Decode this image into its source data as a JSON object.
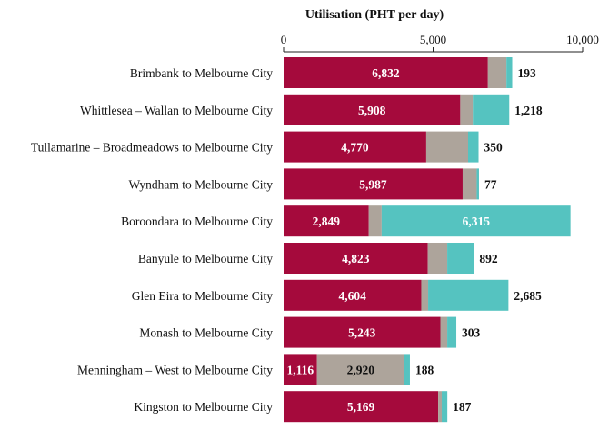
{
  "chart_data": {
    "type": "bar",
    "orientation": "horizontal",
    "stacked": true,
    "title": "Utilisation (PHT per day)",
    "xlim": [
      0,
      10000
    ],
    "ticks": [
      {
        "value": 0,
        "label": "0"
      },
      {
        "value": 5000,
        "label": "5,000"
      },
      {
        "value": 10000,
        "label": "10,000"
      }
    ],
    "grid": false,
    "legend": "none",
    "categories": [
      "Brimbank to Melbourne City",
      "Whittlesea – Wallan to Melbourne City",
      "Tullamarine – Broadmeadows to Melbourne City",
      "Wyndham to Melbourne City",
      "Boroondara to Melbourne City",
      "Banyule to Melbourne City",
      "Glen Eira to Melbourne City",
      "Monash to Melbourne City",
      "Menningham – West to Melbourne City",
      "Kingston to Melbourne City"
    ],
    "series": [
      {
        "color": "#a50a3c",
        "values": [
          6832,
          5908,
          4770,
          5987,
          2849,
          4823,
          4604,
          5243,
          1116,
          5169
        ],
        "labels": [
          "6,832",
          "5,908",
          "4,770",
          "5,987",
          "2,849",
          "4,823",
          "4,604",
          "5,243",
          "1,116",
          "5,169"
        ],
        "label_placement": "inside"
      },
      {
        "color": "#ada49b",
        "values": [
          620,
          420,
          1400,
          470,
          430,
          650,
          230,
          230,
          2920,
          120
        ],
        "labels": [
          "",
          "",
          "",
          "",
          "",
          "",
          "",
          "",
          "2,920",
          ""
        ],
        "label_placement": "inside"
      },
      {
        "color": "#55c3c0",
        "values": [
          193,
          1218,
          350,
          77,
          6315,
          892,
          2685,
          303,
          188,
          187
        ],
        "labels": [
          "193",
          "1,218",
          "350",
          "77",
          "6,315",
          "892",
          "2,685",
          "303",
          "188",
          "187"
        ],
        "label_placement": [
          "outside",
          "outside",
          "outside",
          "outside",
          "inside",
          "outside",
          "outside",
          "outside",
          "outside",
          "outside"
        ]
      }
    ]
  }
}
